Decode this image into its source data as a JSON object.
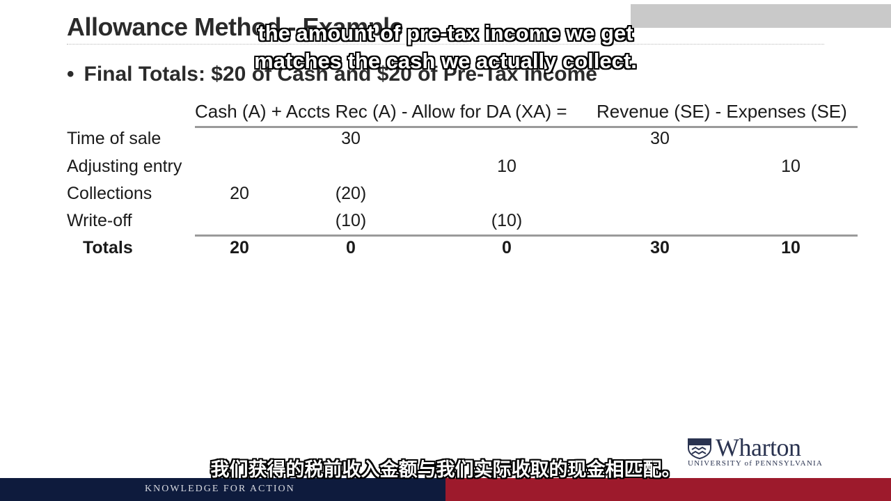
{
  "slide": {
    "title": "Allowance Method - Example",
    "bullet": "Final Totals: $20 of Cash and $20 of Pre-Tax income",
    "bullet_marker": "•"
  },
  "table": {
    "header_left": "Cash (A) + Accts Rec (A) - Allow for DA (XA) =",
    "header_right": "Revenue (SE) - Expenses (SE)",
    "rows": [
      {
        "label": "Time of sale",
        "cash": "",
        "ar": "30",
        "allow": "",
        "rev": "30",
        "exp": ""
      },
      {
        "label": "Adjusting entry",
        "cash": "",
        "ar": "",
        "allow": "10",
        "rev": "",
        "exp": "10"
      },
      {
        "label": "Collections",
        "cash": "20",
        "ar": "(20)",
        "allow": "",
        "rev": "",
        "exp": ""
      },
      {
        "label": "Write-off",
        "cash": "",
        "ar": "(10)",
        "allow": "(10)",
        "rev": "",
        "exp": ""
      }
    ],
    "totals": {
      "label": "Totals",
      "cash": "20",
      "ar": "0",
      "allow": "0",
      "rev": "30",
      "exp": "10"
    }
  },
  "captions": {
    "en_line1": "the amount of pre-tax income we get",
    "en_line2": "matches the cash we actually collect.",
    "zh": "我们获得的税前收入金额与我们实际收取的现金相匹配。"
  },
  "logo": {
    "word": "Wharton",
    "sub": "UNIVERSITY of PENNSYLVANIA"
  },
  "footer": {
    "tagline": "KNOWLEDGE FOR ACTION"
  },
  "colors": {
    "footer_navy": "#0e1b3d",
    "footer_red": "#9d1a2c",
    "logo_ink": "#2a3350"
  }
}
